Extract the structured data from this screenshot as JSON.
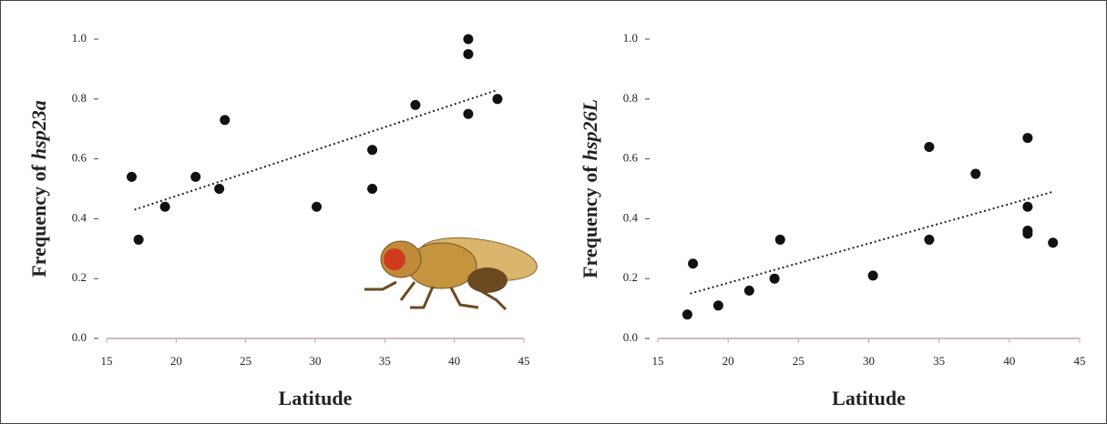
{
  "chart_data": [
    {
      "type": "scatter",
      "ylabel": {
        "text": "Frequency of",
        "gene": "hsp23a"
      },
      "xlabel": "Latitude",
      "xlim": [
        15,
        45
      ],
      "xticks": [
        15,
        20,
        25,
        30,
        35,
        40,
        45
      ],
      "ylim": [
        0,
        1
      ],
      "yticks": [
        {
          "value": 0,
          "label": "0.0"
        },
        0.2,
        0.4,
        0.6,
        0.8,
        {
          "value": 1,
          "label": "1.0"
        }
      ],
      "color": "#111111",
      "x": [
        16.8,
        17.3,
        19.2,
        21.4,
        23.1,
        23.5,
        30.1,
        34.1,
        34.1,
        37.2,
        41.0,
        41.0,
        41.0,
        43.1
      ],
      "values": [
        0.54,
        0.33,
        0.44,
        0.54,
        0.5,
        0.73,
        0.44,
        0.63,
        0.5,
        0.78,
        1.0,
        0.95,
        0.75,
        0.8
      ],
      "trend": {
        "x": [
          17.0,
          43.1
        ],
        "values": [
          0.43,
          0.83
        ]
      }
    },
    {
      "type": "scatter",
      "ylabel": {
        "text": "Frequency of",
        "gene": "hsp26L"
      },
      "xlabel": "Latitude",
      "xlim": [
        15,
        45
      ],
      "xticks": [
        15,
        20,
        25,
        30,
        35,
        40,
        45
      ],
      "ylim": [
        0,
        1
      ],
      "yticks": [
        {
          "value": 0,
          "label": "0.0"
        },
        0.2,
        0.4,
        0.6,
        0.8,
        {
          "value": 1,
          "label": "1.0"
        }
      ],
      "color": "#111111",
      "x": [
        17.1,
        17.5,
        19.3,
        21.5,
        23.3,
        23.7,
        30.3,
        34.3,
        34.3,
        37.6,
        41.3,
        41.3,
        41.3,
        41.3,
        43.1
      ],
      "values": [
        0.08,
        0.25,
        0.11,
        0.16,
        0.2,
        0.33,
        0.21,
        0.64,
        0.33,
        0.55,
        0.67,
        0.44,
        0.36,
        0.35,
        0.32
      ],
      "trend": {
        "x": [
          17.3,
          43.1
        ],
        "values": [
          0.15,
          0.49
        ]
      }
    }
  ]
}
